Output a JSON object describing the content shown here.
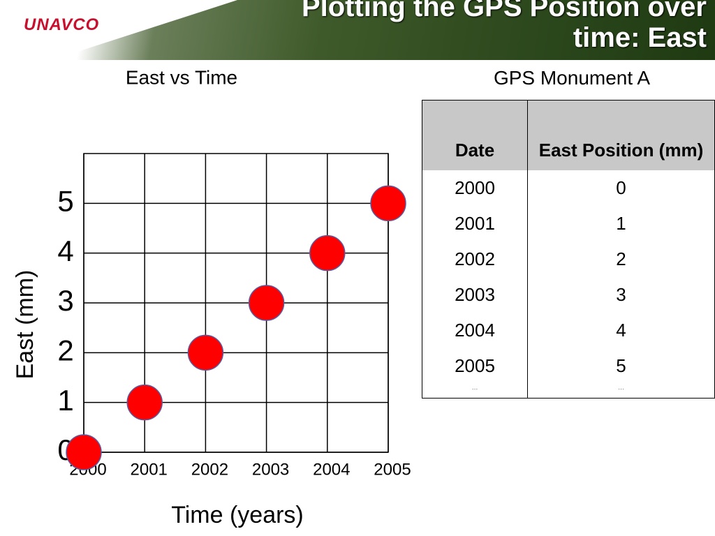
{
  "header": {
    "logo": "UNAVCO",
    "title": "Plotting the GPS Position over time: East"
  },
  "chart_data": {
    "type": "scatter",
    "title": "East vs Time",
    "x_label": "Time (years)",
    "y_label": "East (mm)",
    "series": [
      {
        "name": "East",
        "color": "#ff0000",
        "x": [
          2000,
          2001,
          2002,
          2003,
          2004,
          2005
        ],
        "values": [
          0,
          1,
          2,
          3,
          4,
          5
        ]
      }
    ],
    "xlim": [
      2000,
      2005
    ],
    "xticks": [
      2000,
      2001,
      2002,
      2003,
      2004,
      2005
    ],
    "ylim": [
      0,
      6
    ],
    "yticks": [
      0,
      1,
      2,
      3,
      4,
      5
    ],
    "grid": true
  },
  "table": {
    "caption": "GPS Monument A",
    "columns": [
      "Date",
      "East Position (mm)"
    ],
    "rows": [
      [
        2000,
        0
      ],
      [
        2001,
        1
      ],
      [
        2002,
        2
      ],
      [
        2003,
        3
      ],
      [
        2004,
        4
      ],
      [
        2005,
        5
      ],
      [
        "…",
        "…"
      ]
    ]
  }
}
